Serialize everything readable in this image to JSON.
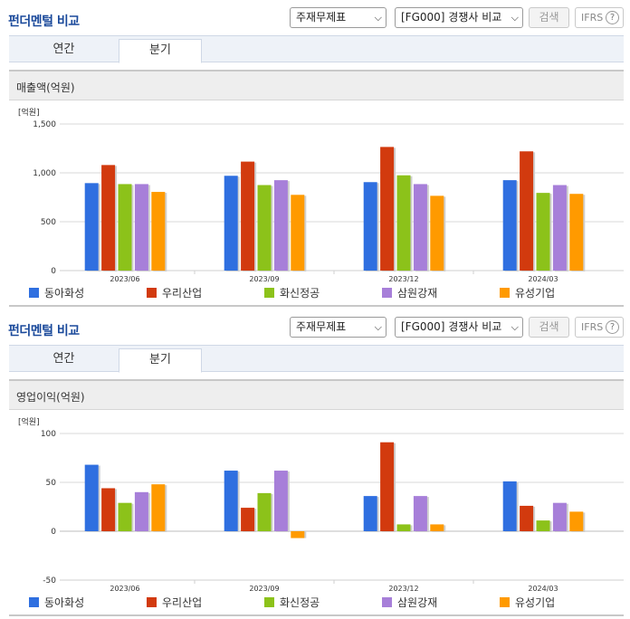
{
  "sections": [
    {
      "header": {
        "title": "펀더멘털 비교",
        "statement_select": "주재무제표",
        "peer_select": "[FG000] 경쟁사 비교",
        "search_label": "검색",
        "ifrs_label": "IFRS",
        "help_glyph": "?"
      },
      "tabs": [
        {
          "label": "연간"
        },
        {
          "label": "분기"
        }
      ],
      "active_tab": 1,
      "panel_title": "매출액(억원)",
      "unit_label": "[억원]",
      "chart_data": {
        "type": "bar",
        "title": "매출액(억원)",
        "categories": [
          "2023/06",
          "2023/09",
          "2023/12",
          "2024/03"
        ],
        "ylim": [
          0,
          1500
        ],
        "yticks": [
          0,
          500,
          1000,
          1500
        ],
        "ytick_labels": [
          "0",
          "500",
          "1,000",
          "1,500"
        ],
        "series": [
          {
            "name": "동아화성",
            "color": "#2f6fe0",
            "values": [
              895,
              970,
              905,
              925
            ]
          },
          {
            "name": "우리산업",
            "color": "#d23a0e",
            "values": [
              1080,
              1115,
              1265,
              1220
            ]
          },
          {
            "name": "화신정공",
            "color": "#8cc21a",
            "values": [
              885,
              875,
              975,
              795
            ]
          },
          {
            "name": "삼원강재",
            "color": "#a77fd9",
            "values": [
              885,
              925,
              885,
              875
            ]
          },
          {
            "name": "유성기업",
            "color": "#ff9a00",
            "values": [
              805,
              775,
              765,
              785
            ]
          }
        ],
        "grid": true,
        "legend": "bottom"
      }
    },
    {
      "header": {
        "title": "펀더멘털 비교",
        "statement_select": "주재무제표",
        "peer_select": "[FG000] 경쟁사 비교",
        "search_label": "검색",
        "ifrs_label": "IFRS",
        "help_glyph": "?"
      },
      "tabs": [
        {
          "label": "연간"
        },
        {
          "label": "분기"
        }
      ],
      "active_tab": 1,
      "panel_title": "영업이익(억원)",
      "unit_label": "[억원]",
      "chart_data": {
        "type": "bar",
        "title": "영업이익(억원)",
        "categories": [
          "2023/06",
          "2023/09",
          "2023/12",
          "2024/03"
        ],
        "ylim": [
          -50,
          100
        ],
        "yticks": [
          -50,
          0,
          50,
          100
        ],
        "ytick_labels": [
          "-50",
          "0",
          "50",
          "100"
        ],
        "series": [
          {
            "name": "동아화성",
            "color": "#2f6fe0",
            "values": [
              68,
              62,
              36,
              51
            ]
          },
          {
            "name": "우리산업",
            "color": "#d23a0e",
            "values": [
              44,
              24,
              91,
              26
            ]
          },
          {
            "name": "화신정공",
            "color": "#8cc21a",
            "values": [
              29,
              39,
              7,
              11
            ]
          },
          {
            "name": "삼원강재",
            "color": "#a77fd9",
            "values": [
              40,
              62,
              36,
              29
            ]
          },
          {
            "name": "유성기업",
            "color": "#ff9a00",
            "values": [
              48,
              -7,
              7,
              20
            ]
          }
        ],
        "grid": true,
        "legend": "bottom"
      }
    }
  ]
}
